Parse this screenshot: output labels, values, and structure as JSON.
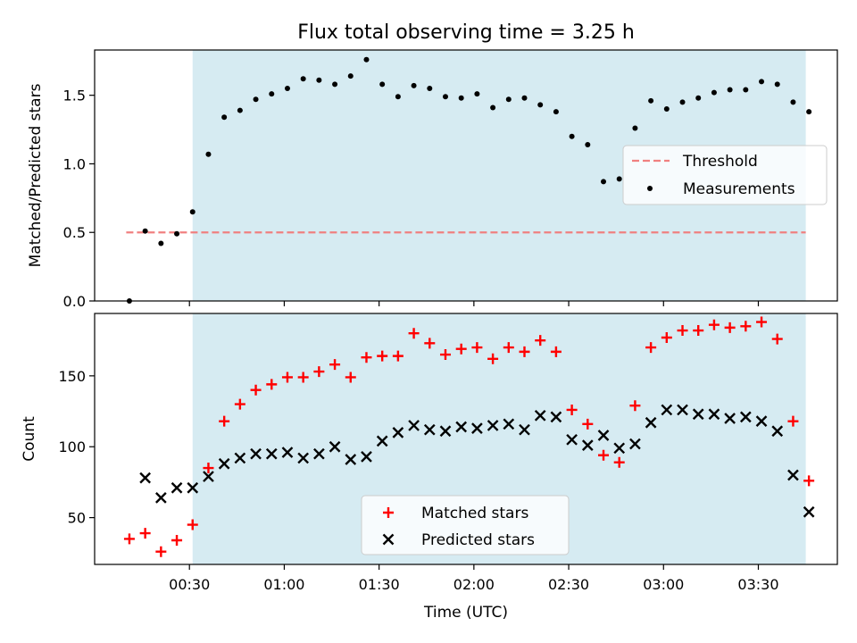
{
  "title": "Flux total observing time = 3.25 h",
  "colors": {
    "shade": "#add8e6",
    "threshold": "#f08080",
    "matched": "#ff0000",
    "predicted": "#000000",
    "measurement": "#000000"
  },
  "chart_data": [
    {
      "type": "scatter",
      "title": "Flux total observing time = 3.25 h",
      "xlabel": "",
      "ylabel": "Matched/Predicted stars",
      "xlim": [
        "00:00",
        "03:55"
      ],
      "ylim": [
        0,
        1.83
      ],
      "yticks": [
        "0.0",
        "0.5",
        "1.0",
        "1.5"
      ],
      "shaded_region": [
        "00:31",
        "03:45"
      ],
      "threshold": {
        "name": "Threshold",
        "value": 0.5,
        "x_range": [
          "00:10",
          "03:45"
        ]
      },
      "legend_position": "center-right",
      "series": [
        {
          "name": "Measurements",
          "x": [
            "00:11",
            "00:16",
            "00:21",
            "00:26",
            "00:31",
            "00:36",
            "00:41",
            "00:46",
            "00:51",
            "00:56",
            "01:01",
            "01:06",
            "01:11",
            "01:16",
            "01:21",
            "01:26",
            "01:31",
            "01:36",
            "01:41",
            "01:46",
            "01:51",
            "01:56",
            "02:01",
            "02:06",
            "02:11",
            "02:16",
            "02:21",
            "02:26",
            "02:31",
            "02:36",
            "02:41",
            "02:46",
            "02:51",
            "02:56",
            "03:01",
            "03:06",
            "03:11",
            "03:16",
            "03:21",
            "03:26",
            "03:31",
            "03:36",
            "03:41",
            "03:46"
          ],
          "values": [
            0.0,
            0.51,
            0.42,
            0.49,
            0.65,
            1.07,
            1.34,
            1.39,
            1.47,
            1.51,
            1.55,
            1.62,
            1.61,
            1.58,
            1.64,
            1.76,
            1.58,
            1.49,
            1.57,
            1.55,
            1.49,
            1.48,
            1.51,
            1.41,
            1.47,
            1.48,
            1.43,
            1.38,
            1.2,
            1.14,
            0.87,
            0.89,
            1.26,
            1.46,
            1.4,
            1.45,
            1.48,
            1.52,
            1.54,
            1.54,
            1.6,
            1.58,
            1.45,
            1.38
          ]
        }
      ]
    },
    {
      "type": "scatter",
      "xlabel": "Time (UTC)",
      "ylabel": "Count",
      "xlim": [
        "00:00",
        "03:55"
      ],
      "ylim": [
        17,
        194
      ],
      "xticks": [
        "00:30",
        "01:00",
        "01:30",
        "02:00",
        "02:30",
        "03:00",
        "03:30"
      ],
      "yticks": [
        "50",
        "100",
        "150"
      ],
      "shaded_region": [
        "00:31",
        "03:45"
      ],
      "legend_position": "lower-center",
      "series": [
        {
          "name": "Matched stars",
          "x": [
            "00:11",
            "00:16",
            "00:21",
            "00:26",
            "00:31",
            "00:36",
            "00:41",
            "00:46",
            "00:51",
            "00:56",
            "01:01",
            "01:06",
            "01:11",
            "01:16",
            "01:21",
            "01:26",
            "01:31",
            "01:36",
            "01:41",
            "01:46",
            "01:51",
            "01:56",
            "02:01",
            "02:06",
            "02:11",
            "02:16",
            "02:21",
            "02:26",
            "02:31",
            "02:36",
            "02:41",
            "02:46",
            "02:51",
            "02:56",
            "03:01",
            "03:06",
            "03:11",
            "03:16",
            "03:21",
            "03:26",
            "03:31",
            "03:36",
            "03:41",
            "03:46"
          ],
          "values": [
            35,
            39,
            26,
            34,
            45,
            85,
            118,
            130,
            140,
            144,
            149,
            149,
            153,
            158,
            149,
            163,
            164,
            164,
            180,
            173,
            165,
            169,
            170,
            162,
            170,
            167,
            175,
            167,
            126,
            116,
            94,
            89,
            129,
            170,
            177,
            182,
            182,
            186,
            184,
            185,
            188,
            176,
            118,
            76
          ]
        },
        {
          "name": "Predicted stars",
          "x": [
            "00:16",
            "00:21",
            "00:26",
            "00:31",
            "00:36",
            "00:41",
            "00:46",
            "00:51",
            "00:56",
            "01:01",
            "01:06",
            "01:11",
            "01:16",
            "01:21",
            "01:26",
            "01:31",
            "01:36",
            "01:41",
            "01:46",
            "01:51",
            "01:56",
            "02:01",
            "02:06",
            "02:11",
            "02:16",
            "02:21",
            "02:26",
            "02:31",
            "02:36",
            "02:41",
            "02:46",
            "02:51",
            "02:56",
            "03:01",
            "03:06",
            "03:11",
            "03:16",
            "03:21",
            "03:26",
            "03:31",
            "03:36",
            "03:41",
            "03:46"
          ],
          "values": [
            78,
            64,
            71,
            71,
            79,
            88,
            92,
            95,
            95,
            96,
            92,
            95,
            100,
            91,
            93,
            104,
            110,
            115,
            112,
            111,
            114,
            113,
            115,
            116,
            112,
            122,
            121,
            105,
            101,
            108,
            99,
            102,
            117,
            126,
            126,
            123,
            123,
            120,
            121,
            118,
            111,
            80,
            54
          ]
        }
      ]
    }
  ]
}
